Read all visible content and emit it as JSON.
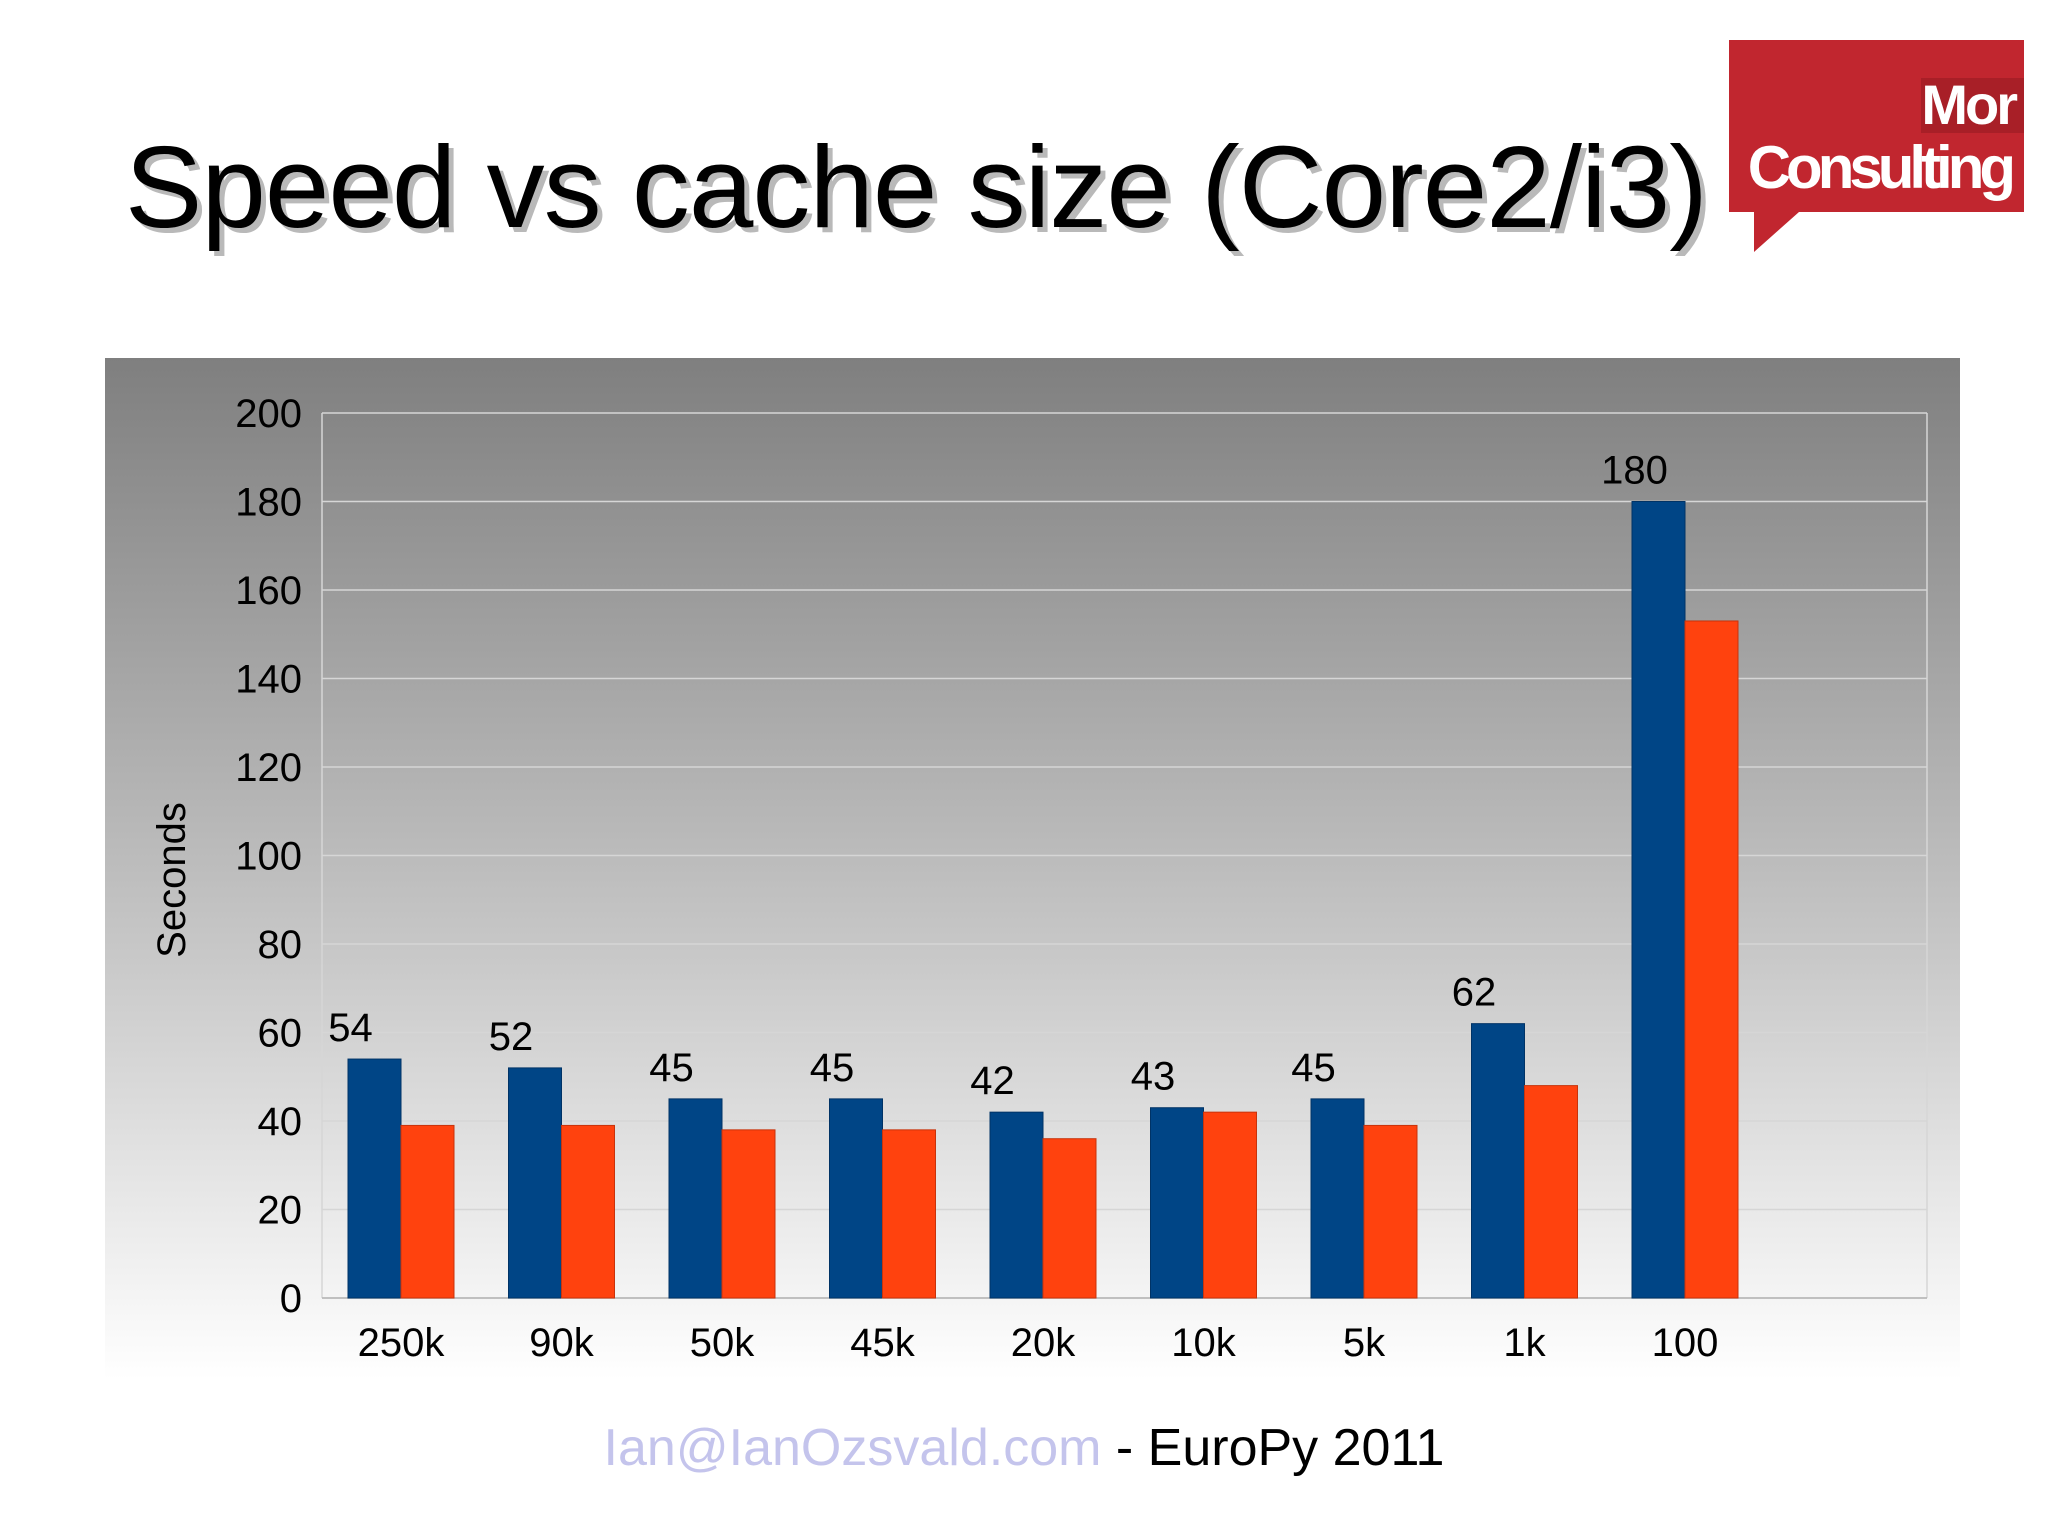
{
  "slide": {
    "title": "Speed vs cache size (Core2/i3)",
    "footer_email": "Ian@IanOzsvald.com",
    "footer_rest": " - EuroPy 2011"
  },
  "logo": {
    "line1": "Mor",
    "line2": "Consulting",
    "color": "#c1262f"
  },
  "colors": {
    "series1": "#004586",
    "series2": "#ff420e",
    "grid": "#d6d6d6",
    "plot_bg_top": "#7f7f7f",
    "plot_bg_bottom": "#ffffff"
  },
  "chart_data": {
    "type": "bar",
    "title": "",
    "xlabel": "",
    "ylabel": "Seconds",
    "ylim": [
      0,
      200
    ],
    "ytick_step": 20,
    "categories": [
      "250k",
      "90k",
      "50k",
      "45k",
      "20k",
      "10k",
      "5k",
      "1k",
      "100"
    ],
    "series": [
      {
        "name": "Core2",
        "values": [
          54,
          52,
          45,
          45,
          42,
          43,
          45,
          62,
          180
        ],
        "show_labels": true
      },
      {
        "name": "i3",
        "values": [
          39,
          39,
          38,
          38,
          36,
          42,
          39,
          48,
          153
        ],
        "show_labels": false
      }
    ]
  }
}
